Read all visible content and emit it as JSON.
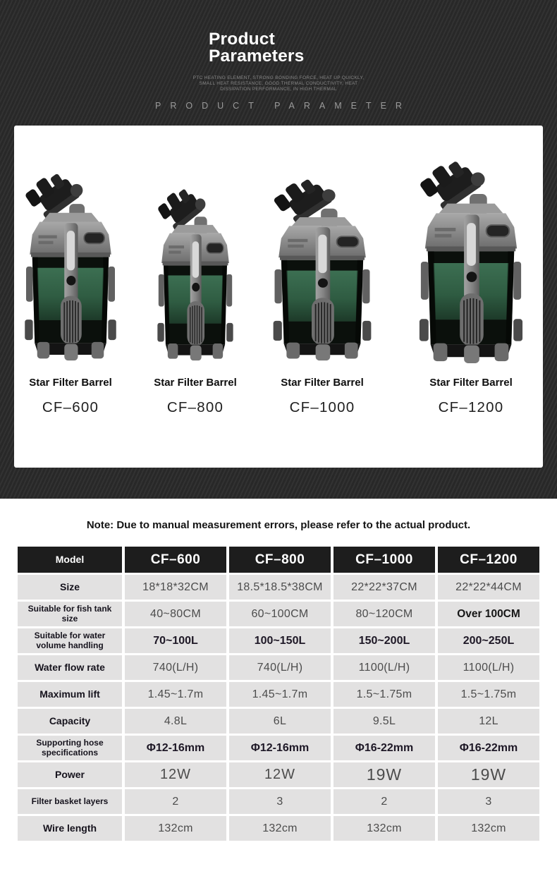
{
  "header": {
    "title_line1": "Product",
    "title_line2": "Parameters",
    "subtitle": "PTC HEATING ELEMENT, STRONG BONDING FORCE, HEAT UP QUICKLY, SMALL HEAT RESISTANCE, GOOD THERMAL CONDUCTIVITY, HEAT DISSIPATION PERFORMANCE, IN HIGH THERMAL",
    "watermark": "PRODUCT PARAMETER"
  },
  "colors": {
    "hero_background": "#2b2b2b",
    "panel_background": "#ffffff",
    "table_header_background": "#1d1d1d",
    "table_cell_background": "#e2e1e1",
    "canister_green": "#2f5c42"
  },
  "products": [
    {
      "name": "Star Filter Barrel",
      "model": "CF–600"
    },
    {
      "name": "Star Filter Barrel",
      "model": "CF–800"
    },
    {
      "name": "Star Filter Barrel",
      "model": "CF–1000"
    },
    {
      "name": "Star Filter Barrel",
      "model": "CF–1200"
    }
  ],
  "note": "Note: Due to manual measurement errors, please refer to the actual product.",
  "table": {
    "header": [
      "Model",
      "CF–600",
      "CF–800",
      "CF–1000",
      "CF–1200"
    ],
    "rows": [
      {
        "label": "Size",
        "label_small": false,
        "style": "normal",
        "values": [
          "18*18*32CM",
          "18.5*18.5*38CM",
          "22*22*37CM",
          "22*22*44CM"
        ],
        "bold_cells": [],
        "big_cells": []
      },
      {
        "label": "Suitable for fish tank size",
        "label_small": true,
        "style": "normal",
        "values": [
          "40~80CM",
          "60~100CM",
          "80~120CM",
          "Over 100CM"
        ],
        "bold_cells": [
          3
        ],
        "big_cells": []
      },
      {
        "label": "Suitable for water volume handling",
        "label_small": true,
        "style": "bold",
        "values": [
          "70~100L",
          "100~150L",
          "150~200L",
          "200~250L"
        ],
        "bold_cells": [],
        "big_cells": []
      },
      {
        "label": "Water flow rate",
        "label_small": false,
        "style": "normal",
        "values": [
          "740(L/H)",
          "740(L/H)",
          "1100(L/H)",
          "1100(L/H)"
        ],
        "bold_cells": [],
        "big_cells": []
      },
      {
        "label": "Maximum lift",
        "label_small": false,
        "style": "normal",
        "values": [
          "1.45~1.7m",
          "1.45~1.7m",
          "1.5~1.75m",
          "1.5~1.75m"
        ],
        "bold_cells": [],
        "big_cells": []
      },
      {
        "label": "Capacity",
        "label_small": false,
        "style": "normal",
        "values": [
          "4.8L",
          "6L",
          "9.5L",
          "12L"
        ],
        "bold_cells": [],
        "big_cells": []
      },
      {
        "label": "Supporting hose specifications",
        "label_small": true,
        "style": "bold",
        "values": [
          "Φ12-16mm",
          "Φ12-16mm",
          "Φ16-22mm",
          "Φ16-22mm"
        ],
        "bold_cells": [],
        "big_cells": []
      },
      {
        "label": "Power",
        "label_small": false,
        "style": "large",
        "values": [
          "12W",
          "12W",
          "19W",
          "19W"
        ],
        "bold_cells": [],
        "big_cells": [
          2,
          3
        ]
      },
      {
        "label": "Filter basket layers",
        "label_small": true,
        "style": "normal",
        "values": [
          "2",
          "3",
          "2",
          "3"
        ],
        "bold_cells": [],
        "big_cells": []
      },
      {
        "label": "Wire length",
        "label_small": false,
        "style": "normal",
        "values": [
          "132cm",
          "132cm",
          "132cm",
          "132cm"
        ],
        "bold_cells": [],
        "big_cells": []
      }
    ]
  }
}
